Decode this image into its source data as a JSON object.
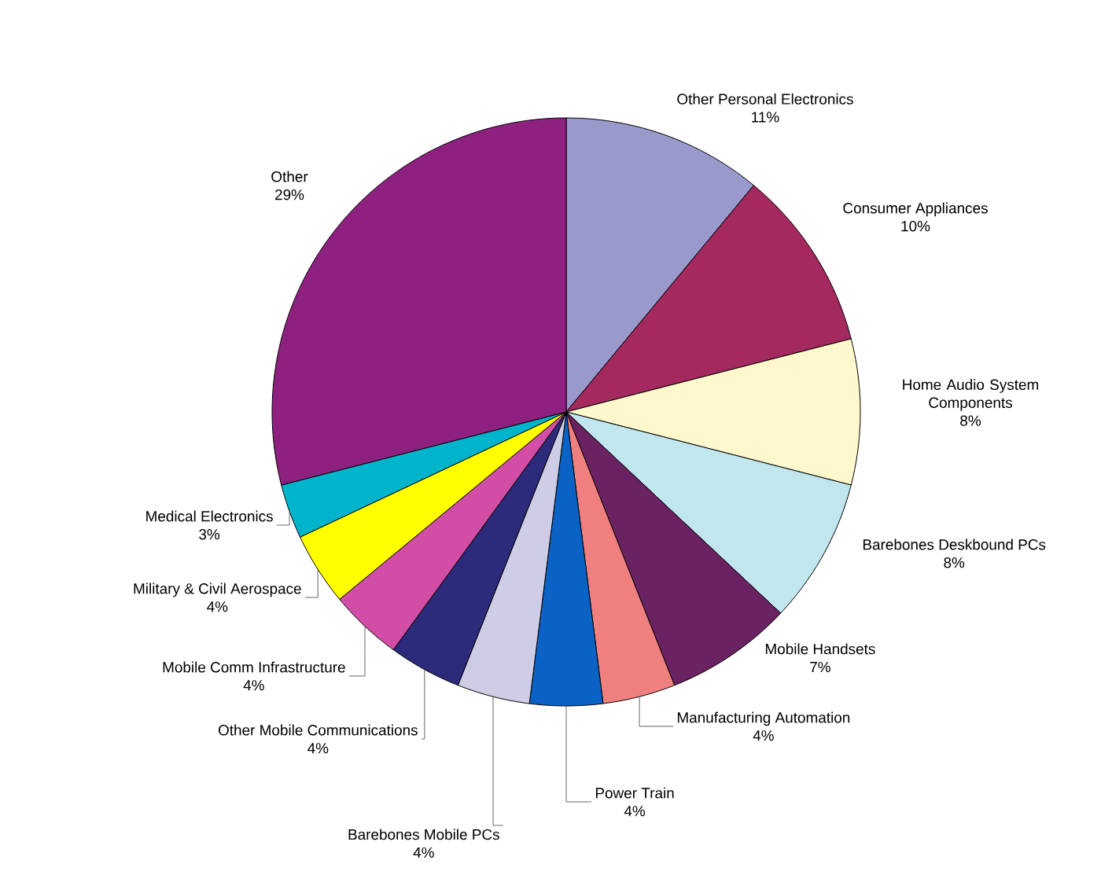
{
  "chart_data": {
    "type": "pie",
    "categories": [
      "Other Personal Electronics",
      "Consumer Appliances",
      "Home Audio System Components",
      "Barebones Deskbound PCs",
      "Mobile Handsets",
      "Manufacturing Automation",
      "Power Train",
      "Barebones Mobile PCs",
      "Other Mobile Communications",
      "Mobile Comm Infrastructure",
      "Military & Civil Aerospace",
      "Medical Electronics",
      "Other"
    ],
    "values": [
      11,
      10,
      8,
      8,
      7,
      4,
      4,
      4,
      4,
      4,
      4,
      3,
      29
    ],
    "value_labels": [
      "11%",
      "10%",
      "8%",
      "8%",
      "7%",
      "4%",
      "4%",
      "4%",
      "4%",
      "4%",
      "4%",
      "3%",
      "29%"
    ],
    "colors": [
      "#9999cc",
      "#a3295e",
      "#fff8cc",
      "#c2e6ee",
      "#6b2262",
      "#f08080",
      "#0a62c4",
      "#cfcde6",
      "#2c2a7a",
      "#d24ea6",
      "#ffff00",
      "#00b4cc",
      "#8e2180"
    ]
  }
}
